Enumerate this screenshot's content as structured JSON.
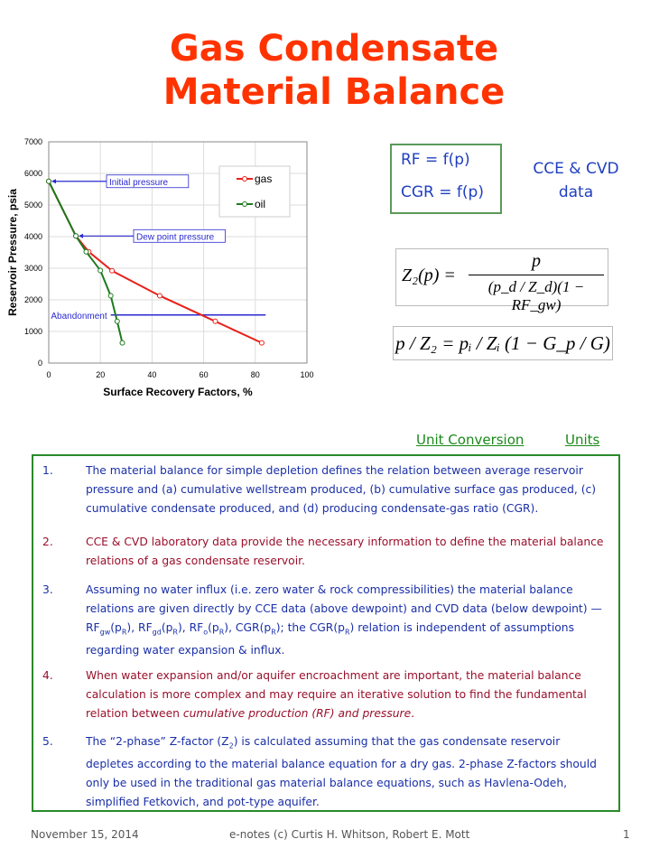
{
  "title": {
    "line1": "Gas Condensate",
    "line2": "Material Balance"
  },
  "chart_data": {
    "type": "line",
    "xlabel": "Surface Recovery Factors, %",
    "ylabel": "Reservoir Pressure, psia",
    "xlim": [
      0,
      100
    ],
    "ylim": [
      0,
      7000
    ],
    "xticks": [
      0,
      20,
      40,
      60,
      80,
      100
    ],
    "yticks": [
      0,
      1000,
      2000,
      3000,
      4000,
      5000,
      6000,
      7000
    ],
    "grid": true,
    "legend_position": "top-right",
    "series": [
      {
        "name": "gas",
        "color": "#e8201a",
        "x": [
          0,
          10.5,
          15.5,
          24.5,
          43,
          64.5,
          82.5
        ],
        "y": [
          5750,
          4020,
          3520,
          2920,
          2130,
          1320,
          640
        ]
      },
      {
        "name": "oil",
        "color": "#1e7a1e",
        "x": [
          0,
          10.5,
          14.5,
          20,
          24,
          26.5,
          28.5
        ],
        "y": [
          5750,
          4020,
          3520,
          2930,
          2130,
          1320,
          640
        ]
      }
    ],
    "annotations": [
      {
        "text": "Initial pressure",
        "x": 0,
        "y": 5750
      },
      {
        "text": "Dew point pressure",
        "x": 10.5,
        "y": 4020
      },
      {
        "text": "Abandonment",
        "y": 1520,
        "x_end": 84
      }
    ],
    "annotation_color": "#2a2ad0"
  },
  "rf_box": {
    "line1": "RF = f(p)",
    "line2": "CGR = f(p)"
  },
  "cce_label": {
    "line1": "CCE & CVD",
    "line2": "data"
  },
  "equations": {
    "eq1_lhs": "Z₂(p) =",
    "eq1_num": "p",
    "eq1_den": "(p_d / Z_d)(1 − RF_gw)",
    "eq2": "p / Z₂ = pᵢ / Zᵢ (1 − G_p / G)"
  },
  "links": {
    "unit_conversion": "Unit Conversion",
    "units": "Units"
  },
  "items": [
    {
      "num": "1.",
      "color": "blue",
      "segments": [
        {
          "t": "The material balance for simple depletion defines the relation between average reservoir pressure and (a) cumulative wellstream produced, (b) cumulative surface gas produced, (c) cumulative condensate produced, and (d) producing condensate-gas ratio (CGR)."
        }
      ]
    },
    {
      "num": "2.",
      "color": "red",
      "segments": [
        {
          "t": "CCE & CVD laboratory data provide the necessary information to define the material balance relations of a gas condensate reservoir."
        }
      ]
    },
    {
      "num": "3.",
      "color": "blue",
      "segments": [
        {
          "t": "Assuming no water influx (i.e. zero water & rock compressibilities) the material balance relations are given directly by CCE data (above dewpoint) and CVD data (below dewpoint) — RF"
        },
        {
          "t": "gw",
          "sub": true
        },
        {
          "t": "(p"
        },
        {
          "t": "R",
          "sub": true
        },
        {
          "t": "), RF"
        },
        {
          "t": "gd",
          "sub": true
        },
        {
          "t": "(p"
        },
        {
          "t": "R",
          "sub": true
        },
        {
          "t": "), RF"
        },
        {
          "t": "o",
          "sub": true
        },
        {
          "t": "(p"
        },
        {
          "t": "R",
          "sub": true
        },
        {
          "t": "), CGR(p"
        },
        {
          "t": "R",
          "sub": true
        },
        {
          "t": "); the CGR(p"
        },
        {
          "t": "R",
          "sub": true
        },
        {
          "t": ") relation is independent of assumptions regarding water expansion & influx."
        }
      ]
    },
    {
      "num": "4.",
      "color": "red",
      "segments": [
        {
          "t": "When water expansion and/or aquifer encroachment are important, the material balance calculation is more complex and may require an iterative solution to find the fundamental relation between "
        },
        {
          "t": "cumulative production (RF) and pressure",
          "i": true
        },
        {
          "t": "."
        }
      ]
    },
    {
      "num": "5.",
      "color": "blue",
      "segments": [
        {
          "t": "The “2-phase” Z-factor (Z"
        },
        {
          "t": "2",
          "sub": true
        },
        {
          "t": ") is calculated assuming that the gas condensate reservoir depletes according to the material balance equation for a dry gas.  2-phase Z-factors should only be used in the traditional gas material balance equations, such as Havlena-Odeh, simplified Fetkovich, and pot-type aquifer."
        }
      ]
    }
  ],
  "footer": {
    "date": "November 15, 2014",
    "credit": "e-notes (c) Curtis H. Whitson, Robert E. Mott",
    "page": "1"
  }
}
